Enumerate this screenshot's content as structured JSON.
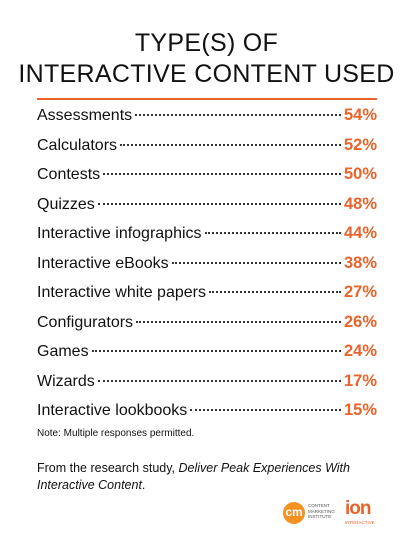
{
  "header": {
    "title_lines": [
      "TYPE(S) OF",
      "INTERACTIVE CONTENT USED"
    ]
  },
  "items": [
    {
      "label": "Assessments",
      "value": "54%"
    },
    {
      "label": "Calculators",
      "value": "52%"
    },
    {
      "label": "Contests",
      "value": "50%"
    },
    {
      "label": "Quizzes",
      "value": "48%"
    },
    {
      "label": "Interactive infographics",
      "value": "44%"
    },
    {
      "label": "Interactive eBooks",
      "value": "38%"
    },
    {
      "label": "Interactive white papers",
      "value": "27%"
    },
    {
      "label": "Configurators",
      "value": "26%"
    },
    {
      "label": "Games",
      "value": "24%"
    },
    {
      "label": "Wizards",
      "value": "17%"
    },
    {
      "label": "Interactive lookbooks",
      "value": "15%"
    }
  ],
  "note": "Note: Multiple responses permitted.",
  "footer": {
    "prefix": "From the research study, ",
    "study": "Deliver Peak Experiences With Interactive Content",
    "suffix": "."
  },
  "logos": {
    "cmi_mark": "cm",
    "cmi_text": [
      "CONTENT",
      "MARKETING",
      "INSTITUTE"
    ],
    "ion_mark": "ion",
    "ion_text": "INTERACTIVE"
  }
}
